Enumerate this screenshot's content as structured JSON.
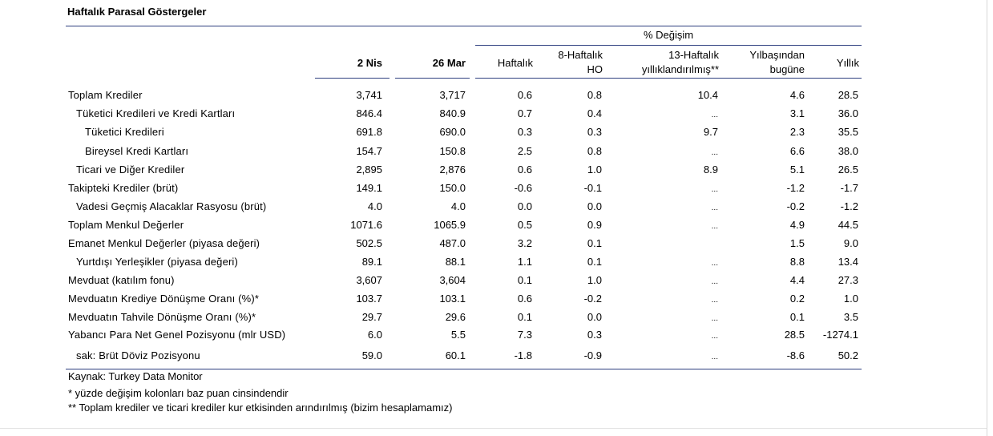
{
  "title": "Haftalık Parasal Göstergeler",
  "header": {
    "group": "% Değişim",
    "col1": "2 Nis",
    "col2": "26 Mar",
    "haftalik": "Haftalık",
    "hafta8_l1": "8-Haftalık",
    "hafta8_l2": "HO",
    "hafta13_l1": "13-Haftalık",
    "hafta13_l2": "yıllıklandırılmış**",
    "ytd_l1": "Yılbaşından",
    "ytd_l2": "bugüne",
    "yillik": "Yıllık"
  },
  "rows": [
    {
      "label": "Toplam Krediler",
      "indent": 0,
      "v1": "3,741",
      "v2": "3,717",
      "w": "0.6",
      "w8": "0.8",
      "w13": "10.4",
      "ytd": "4.6",
      "yoy": "28.5"
    },
    {
      "label": "Tüketici Kredileri ve Kredi Kartları",
      "indent": 1,
      "v1": "846.4",
      "v2": "840.9",
      "w": "0.7",
      "w8": "0.4",
      "w13": "...",
      "ytd": "3.1",
      "yoy": "36.0"
    },
    {
      "label": "Tüketici Kredileri",
      "indent": 2,
      "v1": "691.8",
      "v2": "690.0",
      "w": "0.3",
      "w8": "0.3",
      "w13": "9.7",
      "ytd": "2.3",
      "yoy": "35.5"
    },
    {
      "label": "Bireysel Kredi Kartları",
      "indent": 2,
      "v1": "154.7",
      "v2": "150.8",
      "w": "2.5",
      "w8": "0.8",
      "w13": "...",
      "ytd": "6.6",
      "yoy": "38.0"
    },
    {
      "label": "Ticari ve Diğer Krediler",
      "indent": 1,
      "v1": "2,895",
      "v2": "2,876",
      "w": "0.6",
      "w8": "1.0",
      "w13": "8.9",
      "ytd": "5.1",
      "yoy": "26.5"
    },
    {
      "label": "Takipteki Krediler (brüt)",
      "indent": 0,
      "v1": "149.1",
      "v2": "150.0",
      "w": "-0.6",
      "w8": "-0.1",
      "w13": "...",
      "ytd": "-1.2",
      "yoy": "-1.7"
    },
    {
      "label": "Vadesi Geçmiş Alacaklar Rasyosu (brüt)",
      "indent": 1,
      "v1": "4.0",
      "v2": "4.0",
      "w": "0.0",
      "w8": "0.0",
      "w13": "...",
      "ytd": "-0.2",
      "yoy": "-1.2"
    },
    {
      "label": "Toplam Menkul Değerler",
      "indent": 0,
      "v1": "1071.6",
      "v2": "1065.9",
      "w": "0.5",
      "w8": "0.9",
      "w13": "...",
      "ytd": "4.9",
      "yoy": "44.5"
    },
    {
      "label": "Emanet Menkul Değerler (piyasa değeri)",
      "indent": 0,
      "v1": "502.5",
      "v2": "487.0",
      "w": "3.2",
      "w8": "0.1",
      "w13": "",
      "ytd": "1.5",
      "yoy": "9.0"
    },
    {
      "label": "Yurtdışı Yerleşikler (piyasa değeri)",
      "indent": 1,
      "v1": "89.1",
      "v2": "88.1",
      "w": "1.1",
      "w8": "0.1",
      "w13": "...",
      "ytd": "8.8",
      "yoy": "13.4"
    },
    {
      "label": "Mevduat (katılım fonu)",
      "indent": 0,
      "v1": "3,607",
      "v2": "3,604",
      "w": "0.1",
      "w8": "1.0",
      "w13": "...",
      "ytd": "4.4",
      "yoy": "27.3"
    },
    {
      "label": "Mevduatın Krediye Dönüşme Oranı (%)*",
      "indent": 0,
      "v1": "103.7",
      "v2": "103.1",
      "w": "0.6",
      "w8": "-0.2",
      "w13": "...",
      "ytd": "0.2",
      "yoy": "1.0"
    },
    {
      "label": "Mevduatın Tahvile Dönüşme Oranı (%)*",
      "indent": 0,
      "v1": "29.7",
      "v2": "29.6",
      "w": "0.1",
      "w8": "0.0",
      "w13": "...",
      "ytd": "0.1",
      "yoy": "3.5"
    },
    {
      "label": "Yabancı Para Net Genel Pozisyonu (mlr USD)",
      "indent": 0,
      "v1": "6.0",
      "v2": "5.5",
      "w": "7.3",
      "w8": "0.3",
      "w13": "...",
      "ytd": "28.5",
      "yoy": "-1274.1"
    },
    {
      "label": "sak: Brüt Döviz Pozisyonu",
      "indent": 1,
      "v1": "59.0",
      "v2": "60.1",
      "w": "-1.8",
      "w8": "-0.9",
      "w13": "...",
      "ytd": "-8.6",
      "yoy": "50.2"
    }
  ],
  "footnotes": {
    "source": "Kaynak: Turkey Data Monitor",
    "note1": "* yüzde değişim kolonları baz puan cinsindendir",
    "note2": "** Toplam krediler ve ticari krediler kur etkisinden arındırılmış (bizim hesaplamamız)"
  }
}
